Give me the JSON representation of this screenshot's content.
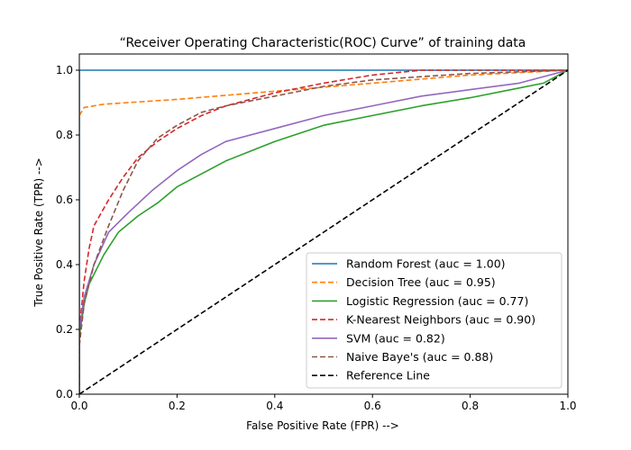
{
  "chart_data": {
    "type": "line",
    "title": "“Receiver Operating Characteristic(ROC) Curve” of training data",
    "xlabel": "False Positive Rate (FPR) -->",
    "ylabel": "True Positive Rate (TPR) -->",
    "xlim": [
      0.0,
      1.0
    ],
    "ylim": [
      0.0,
      1.05
    ],
    "xticks": [
      "0.0",
      "0.2",
      "0.4",
      "0.6",
      "0.8",
      "1.0"
    ],
    "yticks": [
      "0.0",
      "0.2",
      "0.4",
      "0.6",
      "0.8",
      "1.0"
    ],
    "grid": false,
    "legend_position": "lower-right",
    "series": [
      {
        "name": "Random Forest (auc = 1.00)",
        "color": "#1f77b4",
        "dash": "solid",
        "points": [
          [
            0.0,
            0.0
          ],
          [
            0.0,
            1.0
          ],
          [
            1.0,
            1.0
          ]
        ]
      },
      {
        "name": "Decision Tree (auc = 0.95)",
        "color": "#ff7f0e",
        "dash": "dashed",
        "points": [
          [
            0.0,
            0.86
          ],
          [
            0.01,
            0.885
          ],
          [
            0.05,
            0.895
          ],
          [
            0.2,
            0.91
          ],
          [
            0.4,
            0.935
          ],
          [
            0.6,
            0.96
          ],
          [
            0.8,
            0.985
          ],
          [
            1.0,
            1.0
          ]
        ]
      },
      {
        "name": "Logistic Regression (auc = 0.77)",
        "color": "#2ca02c",
        "dash": "solid",
        "points": [
          [
            0.0,
            0.0
          ],
          [
            0.0,
            0.18
          ],
          [
            0.01,
            0.28
          ],
          [
            0.02,
            0.34
          ],
          [
            0.05,
            0.43
          ],
          [
            0.08,
            0.5
          ],
          [
            0.12,
            0.55
          ],
          [
            0.16,
            0.59
          ],
          [
            0.2,
            0.64
          ],
          [
            0.25,
            0.68
          ],
          [
            0.3,
            0.72
          ],
          [
            0.35,
            0.75
          ],
          [
            0.4,
            0.78
          ],
          [
            0.5,
            0.83
          ],
          [
            0.6,
            0.86
          ],
          [
            0.7,
            0.89
          ],
          [
            0.8,
            0.915
          ],
          [
            0.9,
            0.945
          ],
          [
            0.95,
            0.96
          ],
          [
            1.0,
            1.0
          ]
        ]
      },
      {
        "name": "K-Nearest Neighbors (auc = 0.90)",
        "color": "#d62728",
        "dash": "dashed",
        "points": [
          [
            0.0,
            0.0
          ],
          [
            0.0,
            0.2
          ],
          [
            0.01,
            0.35
          ],
          [
            0.02,
            0.45
          ],
          [
            0.03,
            0.52
          ],
          [
            0.06,
            0.6
          ],
          [
            0.09,
            0.67
          ],
          [
            0.12,
            0.73
          ],
          [
            0.16,
            0.78
          ],
          [
            0.2,
            0.82
          ],
          [
            0.25,
            0.86
          ],
          [
            0.3,
            0.89
          ],
          [
            0.4,
            0.93
          ],
          [
            0.5,
            0.96
          ],
          [
            0.6,
            0.985
          ],
          [
            0.7,
            1.0
          ],
          [
            1.0,
            1.0
          ]
        ]
      },
      {
        "name": "SVM (auc = 0.82)",
        "color": "#9467bd",
        "dash": "solid",
        "points": [
          [
            0.0,
            0.0
          ],
          [
            0.0,
            0.2
          ],
          [
            0.01,
            0.3
          ],
          [
            0.03,
            0.4
          ],
          [
            0.06,
            0.5
          ],
          [
            0.1,
            0.56
          ],
          [
            0.15,
            0.63
          ],
          [
            0.2,
            0.69
          ],
          [
            0.25,
            0.74
          ],
          [
            0.3,
            0.78
          ],
          [
            0.4,
            0.82
          ],
          [
            0.5,
            0.86
          ],
          [
            0.6,
            0.89
          ],
          [
            0.7,
            0.92
          ],
          [
            0.8,
            0.94
          ],
          [
            0.9,
            0.96
          ],
          [
            1.0,
            1.0
          ]
        ]
      },
      {
        "name": "Naive Baye's (auc = 0.88)",
        "color": "#8c564b",
        "dash": "dashed",
        "points": [
          [
            0.0,
            0.0
          ],
          [
            0.0,
            0.15
          ],
          [
            0.01,
            0.28
          ],
          [
            0.03,
            0.4
          ],
          [
            0.06,
            0.52
          ],
          [
            0.09,
            0.63
          ],
          [
            0.12,
            0.72
          ],
          [
            0.16,
            0.79
          ],
          [
            0.2,
            0.83
          ],
          [
            0.25,
            0.87
          ],
          [
            0.3,
            0.89
          ],
          [
            0.4,
            0.92
          ],
          [
            0.5,
            0.95
          ],
          [
            0.6,
            0.97
          ],
          [
            0.7,
            0.98
          ],
          [
            0.8,
            0.99
          ],
          [
            1.0,
            1.0
          ]
        ]
      },
      {
        "name": "Reference Line",
        "color": "#000000",
        "dash": "dashed",
        "points": [
          [
            0.0,
            0.0
          ],
          [
            1.0,
            1.0
          ]
        ]
      }
    ]
  }
}
